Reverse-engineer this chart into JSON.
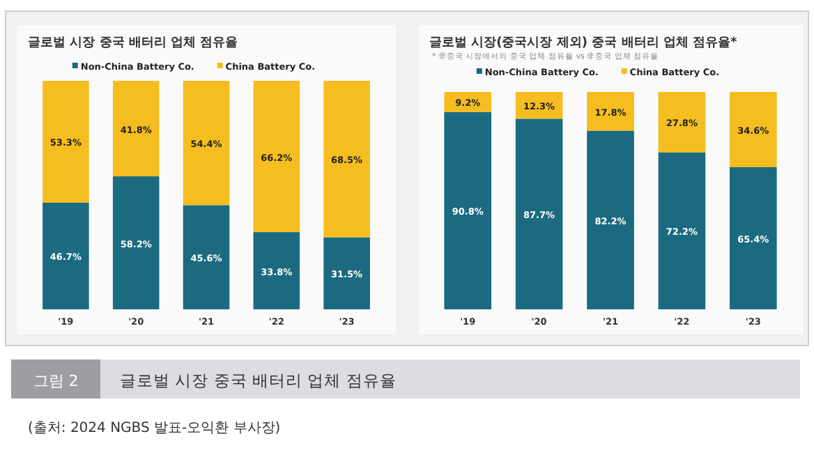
{
  "chart_data": [
    {
      "type": "bar",
      "title": "글로벌 시장 중국 배터리 업체 점유율",
      "categories": [
        "'19",
        "'20",
        "'21",
        "'22",
        "'23"
      ],
      "stacked": true,
      "legend": "top",
      "tick_labels": "x",
      "series": [
        {
          "name": "Non-China Battery Co.",
          "color": "#1b6a80",
          "values": [
            46.7,
            58.2,
            45.6,
            33.8,
            31.5
          ],
          "value_labels": [
            "46.7%",
            "58.2%",
            "45.6%",
            "33.8%",
            "31.5%"
          ]
        },
        {
          "name": "China Battery Co.",
          "color": "#f5bd1f",
          "values": [
            53.3,
            41.8,
            54.4,
            66.2,
            68.5
          ],
          "value_labels": [
            "53.3%",
            "41.8%",
            "54.4%",
            "66.2%",
            "68.5%"
          ]
        }
      ],
      "annotations": [
        "그림 2",
        "글로벌 시장 중국 배터리 업체 점유율",
        "(출처: 2024 NGBS 발표-오익환 부사장)"
      ]
    },
    {
      "type": "bar",
      "title": "글로벌 시장(중국시장 제외) 중국 배터리 업체 점유율*",
      "subtitle": "* 非중국 시장에서의 중국 업체 점유율 vs 非중국 업체 점유율",
      "categories": [
        "'19",
        "'20",
        "'21",
        "'22",
        "'23"
      ],
      "stacked": true,
      "legend": "top",
      "tick_labels": "x",
      "series": [
        {
          "name": "Non-China Battery Co.",
          "color": "#1b6a80",
          "values": [
            90.8,
            87.7,
            82.2,
            72.2,
            65.4
          ],
          "value_labels": [
            "90.8%",
            "87.7%",
            "82.2%",
            "72.2%",
            "65.4%"
          ]
        },
        {
          "name": "China Battery Co.",
          "color": "#f5bd1f",
          "values": [
            9.2,
            12.3,
            17.8,
            27.8,
            34.6
          ],
          "value_labels": [
            "9.2%",
            "12.3%",
            "17.8%",
            "27.8%",
            "34.6%"
          ]
        }
      ]
    }
  ]
}
